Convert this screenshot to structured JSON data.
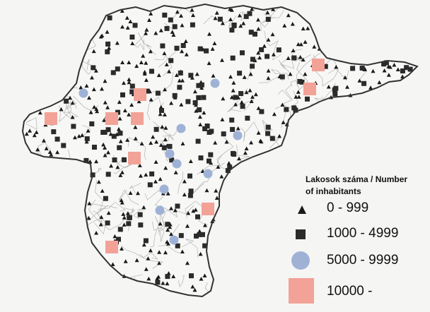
{
  "legend": {
    "title_line1": "Lakosok száma / Number",
    "title_line2": "of inhabitants",
    "items": [
      {
        "label": "0 - 999",
        "symbol": "triangle",
        "color": "#1a1a1a"
      },
      {
        "label": "1000 - 4999",
        "symbol": "square",
        "color": "#2b2b2b"
      },
      {
        "label": "5000 - 9999",
        "symbol": "circle",
        "color": "#9fb2d6"
      },
      {
        "label": "10000 -",
        "symbol": "large-square",
        "color": "#f2a297"
      }
    ]
  },
  "colors": {
    "background": "#f5f5f3",
    "border": "#333333",
    "municipality_lines": "#a9a9a9",
    "triangle": "#1a1a1a",
    "square": "#2b2b2b",
    "circle": "#9fb2d6",
    "town": "#f2a297"
  }
}
